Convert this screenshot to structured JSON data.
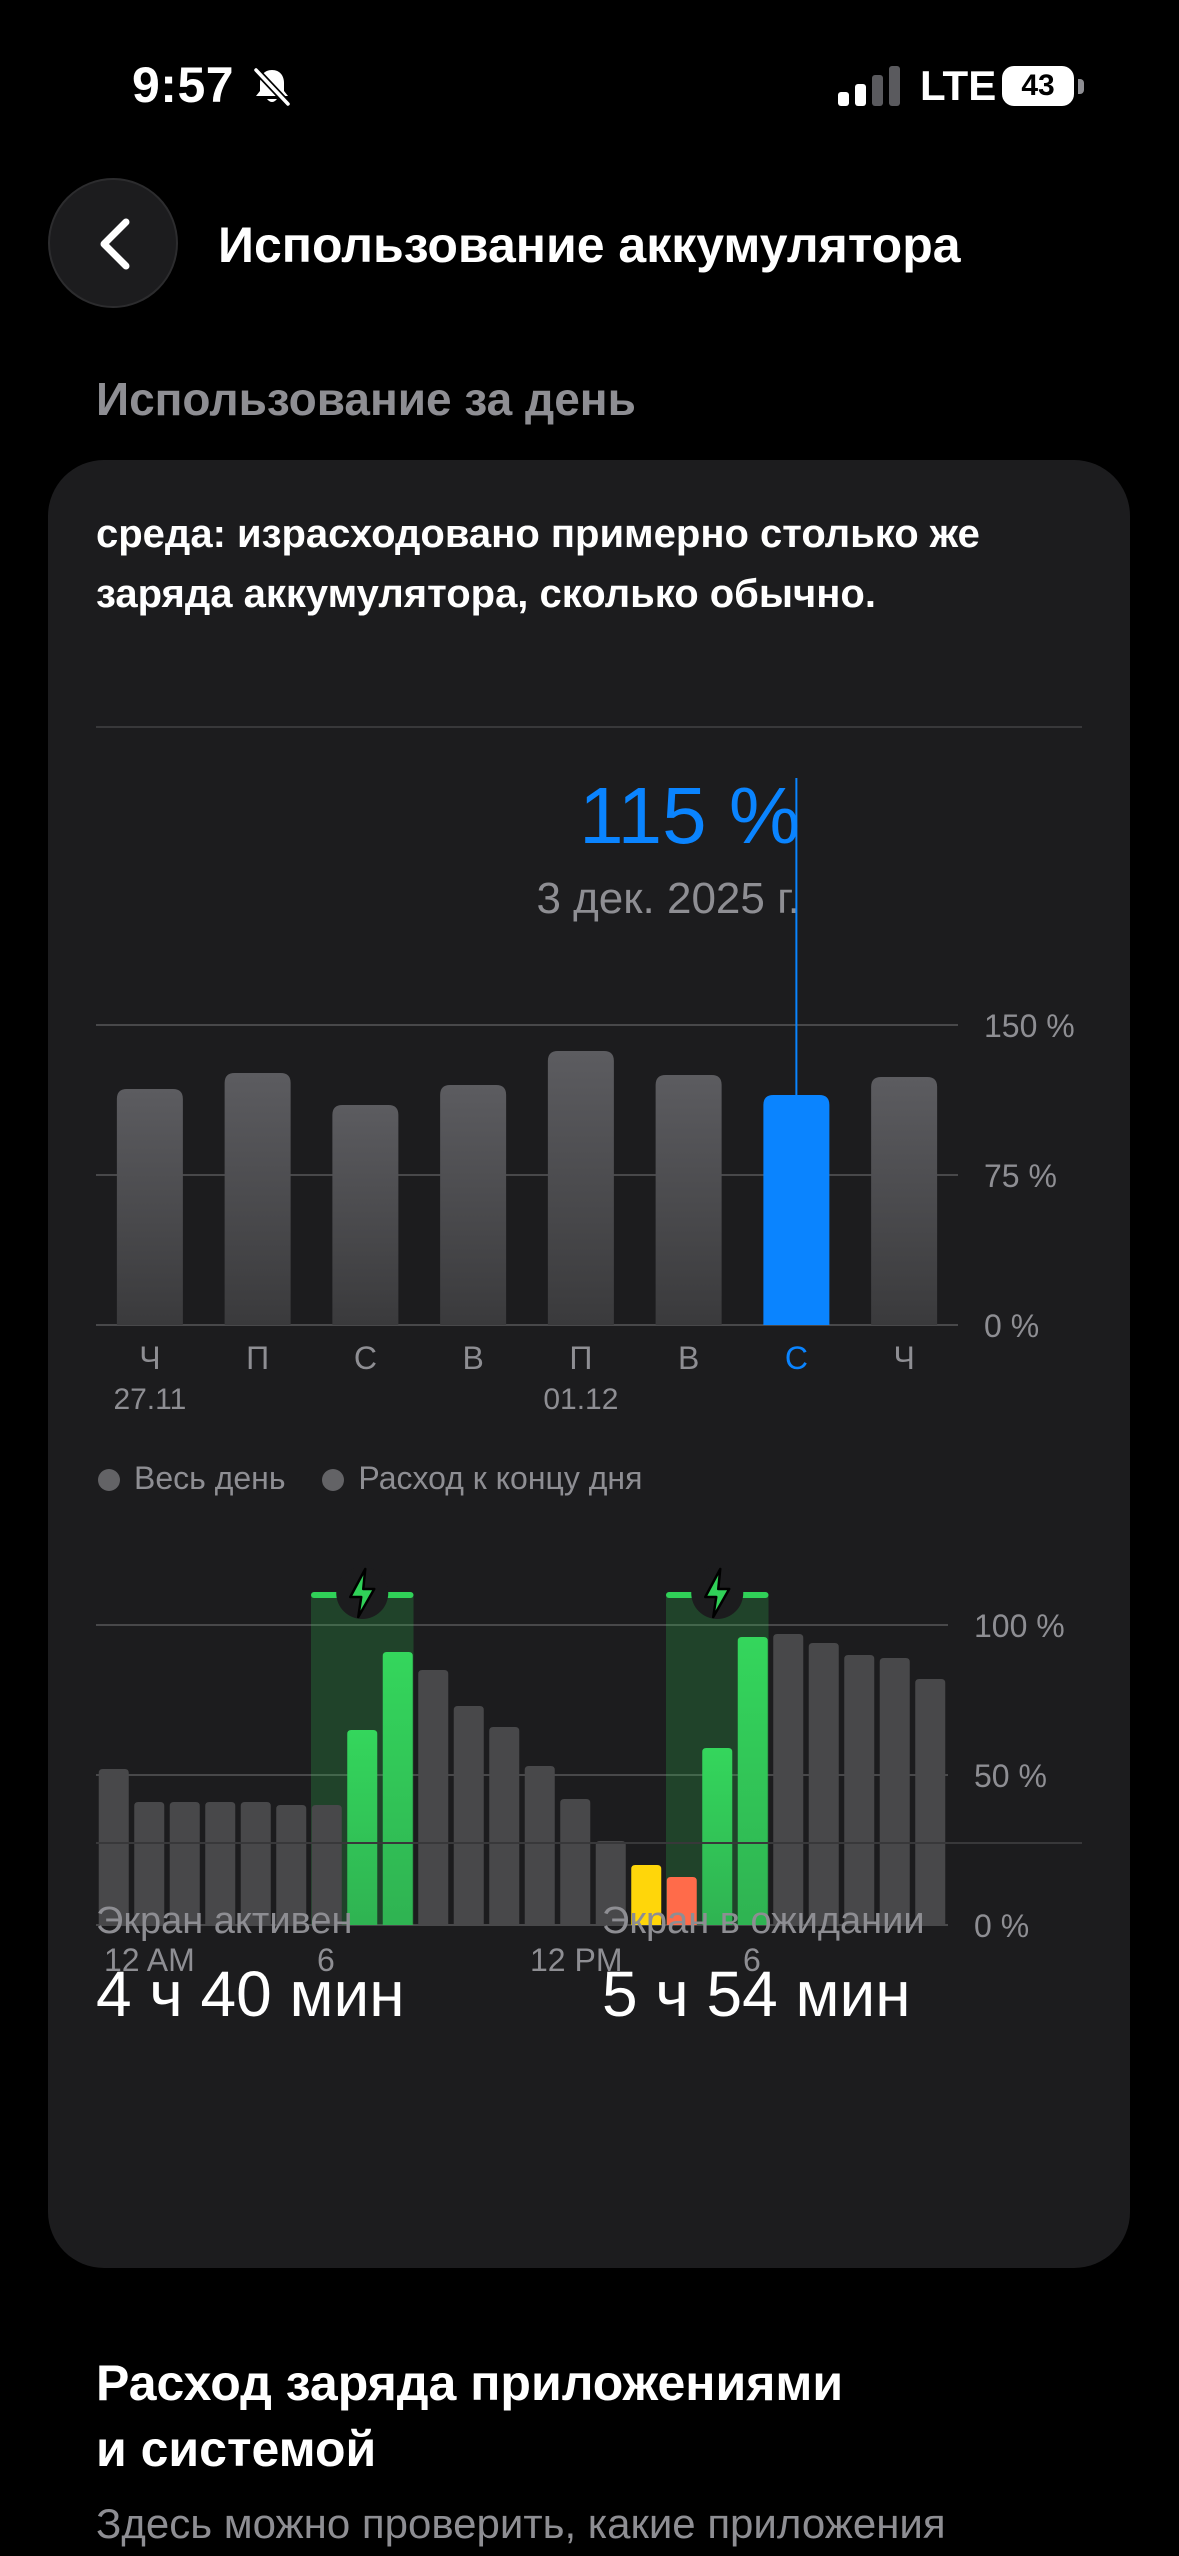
{
  "status_bar": {
    "time": "9:57",
    "network": "LTE",
    "battery": "43",
    "icons": [
      "bell-slash-icon",
      "signal-icon",
      "battery-icon"
    ]
  },
  "nav": {
    "title": "Использование аккумулятора",
    "back_icon": "chevron-left-icon"
  },
  "section_header": "Использование за день",
  "summary": "среда: израсходовано примерно столько же заряда аккумулятора, сколько обычно.",
  "selection": {
    "value": "115 %",
    "date": "3 дек. 2025 г."
  },
  "legend": {
    "all_day": "Весь день",
    "end_of_day": "Расход к концу дня"
  },
  "stats": {
    "screen_on_label": "Экран активен",
    "screen_on_value": "4 ч 40 мин",
    "screen_off_label": "Экран в ожидании",
    "screen_off_value": "5 ч 54 мин"
  },
  "footer": {
    "title_line1": "Расход заряда приложениями",
    "title_line2": "и системой",
    "subtitle": "Здесь можно проверить, какие приложения"
  },
  "colors": {
    "accent": "#0a84ff",
    "bar": "#48484a",
    "charging": "#30d158",
    "low": "#ffd60a",
    "critical": "#ff6b4a"
  },
  "chart_data": [
    {
      "type": "bar",
      "categories": [
        "Ч",
        "П",
        "С",
        "В",
        "П",
        "В",
        "С",
        "Ч"
      ],
      "date_labels": [
        "27.11",
        "",
        "",
        "",
        "01.12",
        "",
        "",
        ""
      ],
      "values": [
        118,
        126,
        110,
        120,
        137,
        125,
        115,
        124
      ],
      "selected_index": 6,
      "yticks": [
        "150 %",
        "75 %",
        "0 %"
      ],
      "ytick_values": [
        150,
        75,
        0
      ],
      "ylim": [
        0,
        150
      ],
      "grid": true
    },
    {
      "type": "bar",
      "values": [
        52,
        41,
        41,
        41,
        41,
        40,
        40,
        65,
        91,
        85,
        73,
        66,
        53,
        42,
        28,
        20,
        16,
        59,
        96,
        97,
        94,
        90,
        89,
        82
      ],
      "status": [
        "normal",
        "normal",
        "normal",
        "normal",
        "normal",
        "normal",
        "normal",
        "charging",
        "charging",
        "normal",
        "normal",
        "normal",
        "normal",
        "normal",
        "normal",
        "low",
        "critical",
        "charging",
        "charging",
        "normal",
        "normal",
        "normal",
        "normal",
        "normal"
      ],
      "charging_periods": [
        [
          6,
          9
        ],
        [
          16,
          19
        ]
      ],
      "xticks": [
        "12 AM",
        "6",
        "12 PM",
        "6"
      ],
      "xtick_hours": [
        0,
        6,
        12,
        18
      ],
      "yticks": [
        "100 %",
        "50 %",
        "0 %"
      ],
      "ytick_values": [
        100,
        50,
        0
      ],
      "ylim": [
        0,
        100
      ],
      "grid": true
    }
  ]
}
